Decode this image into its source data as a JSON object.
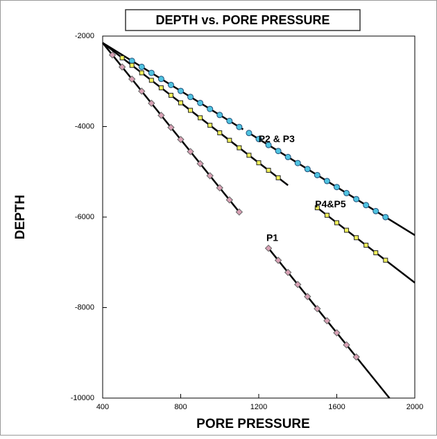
{
  "chart_data": {
    "type": "line",
    "title": "DEPTH vs. PORE PRESSURE",
    "xlabel": "PORE PRESSURE",
    "ylabel": "DEPTH",
    "xlim": [
      400,
      2000
    ],
    "ylim": [
      -10000,
      -2000
    ],
    "xticks": [
      400,
      800,
      1200,
      1600,
      2000
    ],
    "yticks": [
      -10000,
      -8000,
      -6000,
      -4000,
      -2000
    ],
    "series": [
      {
        "name": "P2 & P3",
        "color": "#000000",
        "x": [
          400,
          1120,
          1130,
          1150,
          2000
        ],
        "values": [
          -2150,
          -4062,
          null,
          -4142,
          -6400
        ],
        "markers": {
          "shape": "circle",
          "color": "#4fc3e0",
          "x": [
            550,
            600,
            650,
            700,
            750,
            800,
            850,
            900,
            950,
            1000,
            1050,
            1100,
            1150,
            1200,
            1250,
            1300,
            1350,
            1400,
            1450,
            1500,
            1550,
            1600,
            1650,
            1700,
            1750,
            1800,
            1850
          ],
          "values": [
            -2548,
            -2681,
            -2814,
            -2947,
            -3080,
            -3212,
            -3345,
            -3478,
            -3611,
            -3744,
            -3876,
            -4009,
            -4142,
            -4275,
            -4408,
            -4540,
            -4673,
            -4806,
            -4939,
            -5072,
            -5204,
            -5337,
            -5470,
            -5603,
            -5736,
            -5868,
            -6001
          ]
        }
      },
      {
        "name": "P4&P5",
        "color": "#000000",
        "x": [
          400,
          1350,
          1400,
          1500,
          2000
        ],
        "values": [
          -2150,
          -5297,
          null,
          -5794,
          -7450
        ],
        "markers": {
          "shape": "square",
          "color": "#f2f25a",
          "x": [
            500,
            550,
            600,
            650,
            700,
            750,
            800,
            850,
            900,
            950,
            1000,
            1050,
            1100,
            1150,
            1200,
            1250,
            1300,
            1500,
            1550,
            1600,
            1650,
            1700,
            1750,
            1800,
            1850
          ],
          "values": [
            -2481,
            -2647,
            -2812,
            -2978,
            -3144,
            -3309,
            -3475,
            -3641,
            -3806,
            -3972,
            -4138,
            -4303,
            -4469,
            -4634,
            -4800,
            -4966,
            -5131,
            -5794,
            -5959,
            -6125,
            -6291,
            -6456,
            -6622,
            -6788,
            -6953
          ]
        }
      },
      {
        "name": "P1",
        "color": "#000000",
        "x": [
          400,
          1100,
          1180,
          1250,
          1870
        ],
        "values": [
          -2150,
          -5888,
          null,
          -6689,
          -10000
        ],
        "markers": {
          "shape": "diamond",
          "color": "#d8a0b4",
          "x": [
            450,
            500,
            550,
            600,
            650,
            700,
            750,
            800,
            850,
            900,
            950,
            1000,
            1050,
            1100,
            1250,
            1300,
            1350,
            1400,
            1450,
            1500,
            1550,
            1600,
            1650,
            1700
          ],
          "values": [
            -2417,
            -2684,
            -2951,
            -3218,
            -3485,
            -3752,
            -4019,
            -4286,
            -4553,
            -4820,
            -5087,
            -5354,
            -5621,
            -5888,
            -6689,
            -6956,
            -7223,
            -7490,
            -7757,
            -8024,
            -8291,
            -8558,
            -8825,
            -9092
          ]
        }
      }
    ]
  }
}
